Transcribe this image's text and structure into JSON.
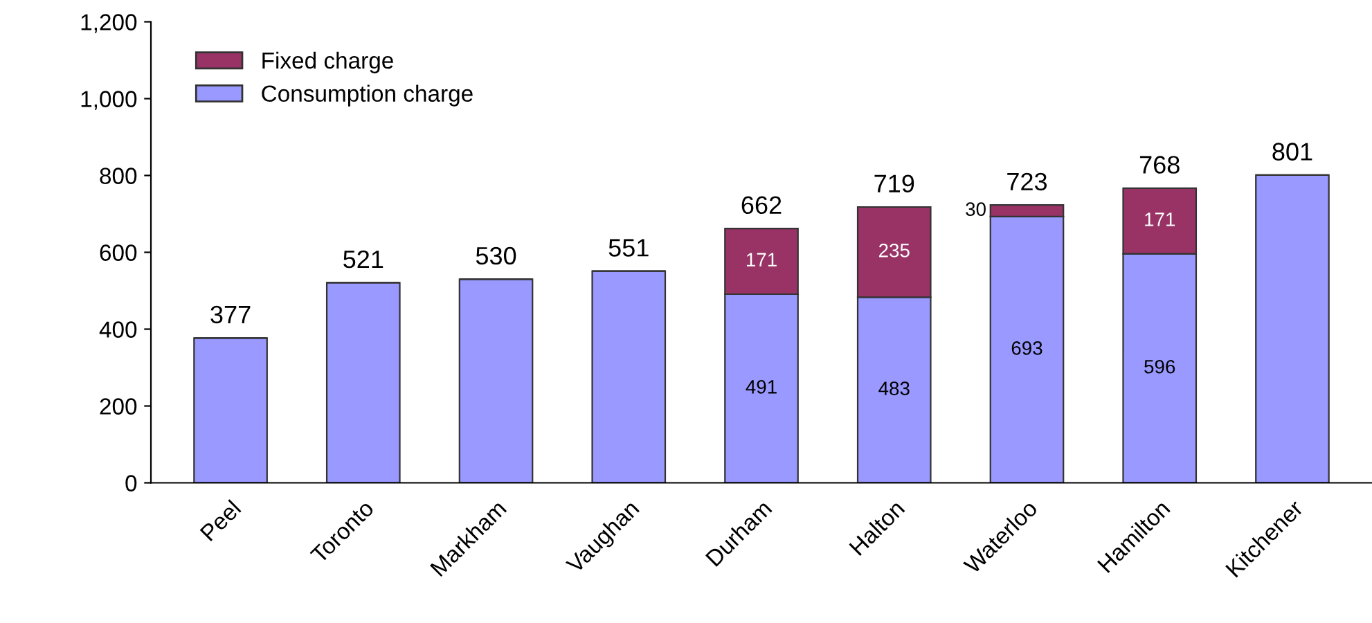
{
  "chart_data": {
    "type": "bar",
    "stacked": true,
    "categories": [
      "Peel",
      "Toronto",
      "Markham",
      "Vaughan",
      "Durham",
      "Halton",
      "Waterloo",
      "Hamilton",
      "Kitchener"
    ],
    "series": [
      {
        "name": "Consumption charge",
        "color": "#9999ff",
        "values": [
          377,
          521,
          530,
          551,
          491,
          483,
          693,
          596,
          801
        ],
        "value_labels": [
          null,
          null,
          null,
          null,
          "491",
          "483",
          "693",
          "596",
          null
        ]
      },
      {
        "name": "Fixed charge",
        "color": "#993366",
        "values": [
          null,
          null,
          null,
          null,
          171,
          235,
          30,
          171,
          null
        ],
        "value_labels": [
          null,
          null,
          null,
          null,
          "171",
          "235",
          "30",
          "171",
          null
        ]
      }
    ],
    "totals": [
      "377",
      "521",
      "530",
      "551",
      "662",
      "719",
      "723",
      "768",
      "801"
    ],
    "ylim": [
      0,
      1200
    ],
    "yticks": [
      0,
      200,
      400,
      600,
      {
        "value": 800,
        "label": "800"
      },
      {
        "value": 1000,
        "label": "1,000"
      },
      {
        "value": 1200,
        "label": "1,200"
      }
    ],
    "legend": "top left",
    "grid": false
  }
}
